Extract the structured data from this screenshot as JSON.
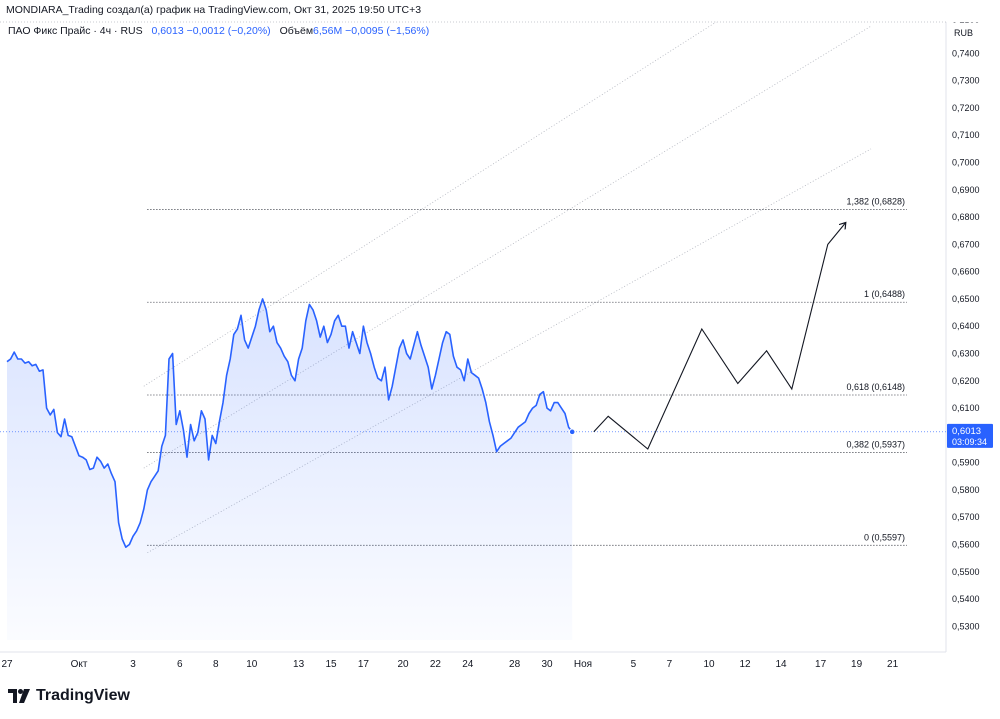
{
  "header": {
    "attribution": "MONDIARA_Trading создал(а) график на TradingView.com, Окт 31, 2025 19:50 UTC+3"
  },
  "legend": {
    "symbol": "ПАО Фикс Прайс · 4ч · RUS",
    "last": "0,6013",
    "change": "−0,0012 (−0,20%)",
    "volume_label": "Объём",
    "volume_value": "6,56M",
    "volume_change": "−0,0095 (−1,56%)"
  },
  "brand": {
    "name": "TradingView",
    "logo_icon": "tradingview-logo-icon"
  },
  "colors": {
    "line": "#2962ff",
    "area": "#2962ff",
    "fib": "#131722",
    "channel": "#b2b5be",
    "text": "#131722"
  },
  "chart_data": {
    "type": "area",
    "currency_label": "RUB",
    "ylim": [
      0.525,
      0.7515
    ],
    "y_ticks": [
      "0,7500",
      "0,7400",
      "0,7300",
      "0,7200",
      "0,7100",
      "0,7000",
      "0,6900",
      "0,6800",
      "0,6700",
      "0,6600",
      "0,6500",
      "0,6400",
      "0,6300",
      "0,6200",
      "0,6100",
      "0,6000",
      "0,5900",
      "0,5800",
      "0,5700",
      "0,5600",
      "0,5500",
      "0,5400",
      "0,5300"
    ],
    "y_tick_values": [
      0.75,
      0.74,
      0.73,
      0.72,
      0.71,
      0.7,
      0.69,
      0.68,
      0.67,
      0.66,
      0.65,
      0.64,
      0.63,
      0.62,
      0.61,
      0.6,
      0.59,
      0.58,
      0.57,
      0.56,
      0.55,
      0.54,
      0.53
    ],
    "x_ticks": [
      "27",
      "Окт",
      "3",
      "6",
      "8",
      "10",
      "13",
      "15",
      "17",
      "20",
      "22",
      "24",
      "28",
      "30",
      "Ноя",
      "5",
      "7",
      "10",
      "12",
      "14",
      "17",
      "19",
      "21"
    ],
    "x_tick_index": [
      0,
      20,
      35,
      48,
      58,
      68,
      81,
      90,
      99,
      110,
      119,
      128,
      141,
      150,
      160,
      174,
      184,
      195,
      205,
      215,
      226,
      236,
      246
    ],
    "series": [
      {
        "values": [
          0.627,
          0.628,
          0.6305,
          0.628,
          0.628,
          0.6265,
          0.627,
          0.6255,
          0.626,
          0.6235,
          0.624,
          0.61,
          0.6075,
          0.6095,
          0.601,
          0.5995,
          0.606,
          0.6,
          0.5995,
          0.596,
          0.5925,
          0.592,
          0.591,
          0.5875,
          0.588,
          0.592,
          0.5905,
          0.588,
          0.5895,
          0.586,
          0.583,
          0.568,
          0.562,
          0.559,
          0.56,
          0.563,
          0.565,
          0.568,
          0.573,
          0.58,
          0.583,
          0.585,
          0.587,
          0.596,
          0.6,
          0.628,
          0.63,
          0.604,
          0.609,
          0.602,
          0.592,
          0.604,
          0.598,
          0.601,
          0.609,
          0.606,
          0.591,
          0.6,
          0.597,
          0.605,
          0.612,
          0.622,
          0.628,
          0.637,
          0.639,
          0.644,
          0.635,
          0.632,
          0.636,
          0.64,
          0.646,
          0.65,
          0.646,
          0.638,
          0.64,
          0.634,
          0.632,
          0.629,
          0.627,
          0.622,
          0.62,
          0.628,
          0.632,
          0.642,
          0.648,
          0.646,
          0.642,
          0.636,
          0.64,
          0.634,
          0.637,
          0.642,
          0.644,
          0.64,
          0.64,
          0.632,
          0.638,
          0.634,
          0.63,
          0.64,
          0.634,
          0.63,
          0.625,
          0.621,
          0.62,
          0.625,
          0.613,
          0.618,
          0.625,
          0.632,
          0.635,
          0.63,
          0.628,
          0.633,
          0.638,
          0.633,
          0.629,
          0.625,
          0.617,
          0.622,
          0.628,
          0.634,
          0.638,
          0.637,
          0.629,
          0.625,
          0.624,
          0.62,
          0.628,
          0.623,
          0.622,
          0.621,
          0.617,
          0.612,
          0.605,
          0.6,
          0.594,
          0.596,
          0.597,
          0.598,
          0.599,
          0.601,
          0.603,
          0.604,
          0.605,
          0.608,
          0.61,
          0.611,
          0.615,
          0.616,
          0.61,
          0.609,
          0.612,
          0.612,
          0.61,
          0.608,
          0.603,
          0.6013
        ]
      }
    ],
    "projection": [
      [
        163,
        0.6013
      ],
      [
        167,
        0.607
      ],
      [
        178,
        0.595
      ],
      [
        193,
        0.639
      ],
      [
        203,
        0.619
      ],
      [
        211,
        0.631
      ],
      [
        218,
        0.617
      ],
      [
        228,
        0.67
      ],
      [
        233,
        0.678
      ]
    ],
    "fib_levels": [
      {
        "label": "1,382 (0,6828)",
        "value": 0.6828
      },
      {
        "label": "1 (0,6488)",
        "value": 0.6488
      },
      {
        "label": "0,618 (0,6148)",
        "value": 0.6148
      },
      {
        "label": "0,382 (0,5937)",
        "value": 0.5937
      },
      {
        "label": "0 (0,5597)",
        "value": 0.5597
      }
    ],
    "fib_start_index": 39,
    "fib_end_index": 250,
    "channel_lines": [
      [
        [
          38,
          0.618
        ],
        [
          197,
          0.7515
        ]
      ],
      [
        [
          38,
          0.588
        ],
        [
          240,
          0.75
        ]
      ],
      [
        [
          39,
          0.557
        ],
        [
          240,
          0.705
        ]
      ]
    ],
    "price_label": {
      "value": "0,6013",
      "countdown": "03:09:34"
    }
  }
}
